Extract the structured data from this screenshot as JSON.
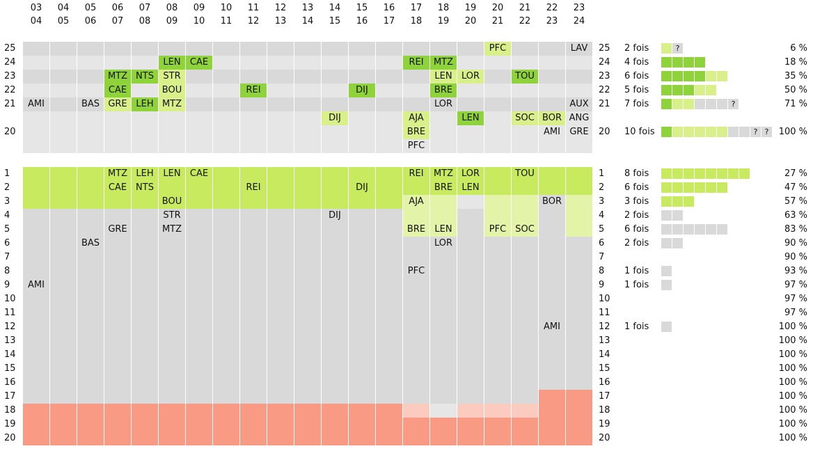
{
  "chart_data": {
    "type": "heatmap",
    "seasons": [
      "03-04",
      "04-05",
      "05-06",
      "06-07",
      "07-08",
      "08-09",
      "09-10",
      "10-11",
      "11-12",
      "12-13",
      "13-14",
      "14-15",
      "15-16",
      "16-17",
      "17-18",
      "18-19",
      "19-20",
      "20-21",
      "21-22",
      "22-23",
      "23-24"
    ],
    "season_top": [
      "03",
      "04",
      "05",
      "06",
      "07",
      "08",
      "09",
      "10",
      "11",
      "12",
      "13",
      "14",
      "15",
      "16",
      "17",
      "18",
      "19",
      "20",
      "21",
      "22",
      "23"
    ],
    "season_bottom": [
      "04",
      "05",
      "06",
      "07",
      "08",
      "09",
      "10",
      "11",
      "12",
      "13",
      "14",
      "15",
      "16",
      "17",
      "18",
      "19",
      "20",
      "21",
      "22",
      "23",
      "24"
    ],
    "top_panel": {
      "rows": [
        {
          "label": "25",
          "count": "2 fois",
          "pct": "6 %"
        },
        {
          "label": "24",
          "count": "4 fois",
          "pct": "18 %"
        },
        {
          "label": "23",
          "count": "6 fois",
          "pct": "35 %"
        },
        {
          "label": "22",
          "count": "5 fois",
          "pct": "50 %"
        },
        {
          "label": "21",
          "count": "7 fois",
          "pct": "71 %"
        },
        {
          "label": "20",
          "count": "10 fois",
          "pct": "100 %"
        }
      ],
      "teams": [
        {
          "team": "PFC",
          "season": 17,
          "row": 0,
          "sub": 0,
          "shade": "light"
        },
        {
          "team": "LAV",
          "season": 20,
          "row": 0,
          "sub": 0,
          "shade": "none"
        },
        {
          "team": "LEN",
          "season": 5,
          "row": 1,
          "sub": 0,
          "shade": "bright"
        },
        {
          "team": "CAE",
          "season": 6,
          "row": 1,
          "sub": 0,
          "shade": "bright"
        },
        {
          "team": "REI",
          "season": 14,
          "row": 1,
          "sub": 0,
          "shade": "bright"
        },
        {
          "team": "MTZ",
          "season": 15,
          "row": 1,
          "sub": 0,
          "shade": "bright"
        },
        {
          "team": "MTZ",
          "season": 3,
          "row": 2,
          "sub": 0,
          "shade": "bright"
        },
        {
          "team": "NTS",
          "season": 4,
          "row": 2,
          "sub": 0,
          "shade": "bright"
        },
        {
          "team": "STR",
          "season": 5,
          "row": 2,
          "sub": 0,
          "shade": "light"
        },
        {
          "team": "LEN",
          "season": 15,
          "row": 2,
          "sub": 0,
          "shade": "light"
        },
        {
          "team": "LOR",
          "season": 16,
          "row": 2,
          "sub": 0,
          "shade": "light"
        },
        {
          "team": "TOU",
          "season": 18,
          "row": 2,
          "sub": 0,
          "shade": "bright"
        },
        {
          "team": "CAE",
          "season": 3,
          "row": 3,
          "sub": 0,
          "shade": "bright"
        },
        {
          "team": "BOU",
          "season": 5,
          "row": 3,
          "sub": 0,
          "shade": "light"
        },
        {
          "team": "REI",
          "season": 8,
          "row": 3,
          "sub": 0,
          "shade": "bright"
        },
        {
          "team": "DIJ",
          "season": 12,
          "row": 3,
          "sub": 0,
          "shade": "bright"
        },
        {
          "team": "BRE",
          "season": 15,
          "row": 3,
          "sub": 0,
          "shade": "bright"
        },
        {
          "team": "AMI",
          "season": 0,
          "row": 4,
          "sub": 0,
          "shade": "none"
        },
        {
          "team": "BAS",
          "season": 2,
          "row": 4,
          "sub": 0,
          "shade": "none"
        },
        {
          "team": "GRE",
          "season": 3,
          "row": 4,
          "sub": 0,
          "shade": "light"
        },
        {
          "team": "LEH",
          "season": 4,
          "row": 4,
          "sub": 0,
          "shade": "bright"
        },
        {
          "team": "MTZ",
          "season": 5,
          "row": 4,
          "sub": 0,
          "shade": "light"
        },
        {
          "team": "LOR",
          "season": 15,
          "row": 4,
          "sub": 0,
          "shade": "none"
        },
        {
          "team": "AUX",
          "season": 20,
          "row": 4,
          "sub": 0,
          "shade": "none"
        },
        {
          "team": "DIJ",
          "season": 11,
          "row": 5,
          "sub": 0,
          "shade": "light"
        },
        {
          "team": "AJA",
          "season": 14,
          "row": 5,
          "sub": 0,
          "shade": "light"
        },
        {
          "team": "BRE",
          "season": 14,
          "row": 5,
          "sub": 1,
          "shade": "light"
        },
        {
          "team": "PFC",
          "season": 14,
          "row": 5,
          "sub": 2,
          "shade": "none"
        },
        {
          "team": "LEN",
          "season": 16,
          "row": 5,
          "sub": 0,
          "shade": "bright"
        },
        {
          "team": "SOC",
          "season": 18,
          "row": 5,
          "sub": 0,
          "shade": "light"
        },
        {
          "team": "BOR",
          "season": 19,
          "row": 5,
          "sub": 0,
          "shade": "light"
        },
        {
          "team": "AMI",
          "season": 19,
          "row": 5,
          "sub": 1,
          "shade": "none"
        },
        {
          "team": "ANG",
          "season": 20,
          "row": 5,
          "sub": 0,
          "shade": "none"
        },
        {
          "team": "GRE",
          "season": 20,
          "row": 5,
          "sub": 1,
          "shade": "none"
        }
      ],
      "bars": [
        {
          "row": 0,
          "squares": [
            "light",
            "q"
          ]
        },
        {
          "row": 1,
          "squares": [
            "bright",
            "bright",
            "bright",
            "bright"
          ]
        },
        {
          "row": 2,
          "squares": [
            "bright",
            "bright",
            "bright",
            "bright",
            "light",
            "light"
          ]
        },
        {
          "row": 3,
          "squares": [
            "bright",
            "bright",
            "bright",
            "light",
            "light"
          ]
        },
        {
          "row": 4,
          "squares": [
            "bright",
            "light",
            "light",
            "grey",
            "grey",
            "grey",
            "q"
          ]
        },
        {
          "row": 5,
          "squares": [
            "bright",
            "light",
            "light",
            "light",
            "light",
            "light",
            "grey",
            "grey",
            "q",
            "q"
          ]
        }
      ],
      "question_mark": "?"
    },
    "bottom_panel": {
      "rows": [
        {
          "label": "1",
          "count": "8 fois",
          "pct": "27 %"
        },
        {
          "label": "2",
          "count": "6 fois",
          "pct": "47 %"
        },
        {
          "label": "3",
          "count": "3 fois",
          "pct": "57 %"
        },
        {
          "label": "4",
          "count": "2 fois",
          "pct": "63 %"
        },
        {
          "label": "5",
          "count": "6 fois",
          "pct": "83 %"
        },
        {
          "label": "6",
          "count": "2 fois",
          "pct": "90 %"
        },
        {
          "label": "7",
          "count": "",
          "pct": "90 %"
        },
        {
          "label": "8",
          "count": "1 fois",
          "pct": "93 %"
        },
        {
          "label": "9",
          "count": "1 fois",
          "pct": "97 %"
        },
        {
          "label": "10",
          "count": "",
          "pct": "97 %"
        },
        {
          "label": "11",
          "count": "",
          "pct": "97 %"
        },
        {
          "label": "12",
          "count": "1 fois",
          "pct": "100 %"
        },
        {
          "label": "13",
          "count": "",
          "pct": "100 %"
        },
        {
          "label": "14",
          "count": "",
          "pct": "100 %"
        },
        {
          "label": "15",
          "count": "",
          "pct": "100 %"
        },
        {
          "label": "16",
          "count": "",
          "pct": "100 %"
        },
        {
          "label": "17",
          "count": "",
          "pct": "100 %"
        },
        {
          "label": "18",
          "count": "",
          "pct": "100 %"
        },
        {
          "label": "19",
          "count": "",
          "pct": "100 %"
        },
        {
          "label": "20",
          "count": "",
          "pct": "100 %"
        }
      ],
      "bars": [
        {
          "row": 0,
          "n": 8,
          "shade": "bright"
        },
        {
          "row": 1,
          "n": 6,
          "shade": "bright"
        },
        {
          "row": 2,
          "n": 3,
          "shade": "bright"
        },
        {
          "row": 3,
          "n": 2,
          "shade": "grey"
        },
        {
          "row": 4,
          "n": 6,
          "shade": "grey"
        },
        {
          "row": 5,
          "n": 2,
          "shade": "grey"
        },
        {
          "row": 7,
          "n": 1,
          "shade": "grey"
        },
        {
          "row": 8,
          "n": 1,
          "shade": "grey"
        },
        {
          "row": 11,
          "n": 1,
          "shade": "grey"
        }
      ],
      "zones": [
        {
          "season": 0,
          "green": 3,
          "lightgreen": 0,
          "red_from": 17
        },
        {
          "season": 1,
          "green": 3,
          "lightgreen": 0,
          "red_from": 17
        },
        {
          "season": 2,
          "green": 3,
          "lightgreen": 0,
          "red_from": 17
        },
        {
          "season": 3,
          "green": 3,
          "lightgreen": 0,
          "red_from": 17
        },
        {
          "season": 4,
          "green": 3,
          "lightgreen": 0,
          "red_from": 17
        },
        {
          "season": 5,
          "green": 3,
          "lightgreen": 0,
          "red_from": 17
        },
        {
          "season": 6,
          "green": 3,
          "lightgreen": 0,
          "red_from": 17
        },
        {
          "season": 7,
          "green": 3,
          "lightgreen": 0,
          "red_from": 17
        },
        {
          "season": 8,
          "green": 3,
          "lightgreen": 0,
          "red_from": 17
        },
        {
          "season": 9,
          "green": 3,
          "lightgreen": 0,
          "red_from": 17
        },
        {
          "season": 10,
          "green": 3,
          "lightgreen": 0,
          "red_from": 17
        },
        {
          "season": 11,
          "green": 3,
          "lightgreen": 0,
          "red_from": 17
        },
        {
          "season": 12,
          "green": 3,
          "lightgreen": 0,
          "red_from": 17
        },
        {
          "season": 13,
          "green": 3,
          "lightgreen": 0,
          "red_from": 17
        },
        {
          "season": 14,
          "green": 2,
          "lightgreen": 3,
          "red_from": 18,
          "palered": 1
        },
        {
          "season": 15,
          "green": 2,
          "lightgreen": 3,
          "red_from": 18,
          "greyish": 1
        },
        {
          "season": 16,
          "green": 2,
          "lightgreen": 0,
          "red_from": 18,
          "lightgreyzone": 1
        },
        {
          "season": 17,
          "green": 2,
          "lightgreen": 3,
          "red_from": 18,
          "palered": 1
        },
        {
          "season": 18,
          "green": 2,
          "lightgreen": 3,
          "red_from": 18,
          "palered": 1
        },
        {
          "season": 19,
          "green": 2,
          "lightgreen": 0,
          "red_from": 16
        },
        {
          "season": 20,
          "green": 2,
          "lightgreen": 3,
          "red_from": 16
        }
      ],
      "teams": [
        {
          "team": "MTZ",
          "season": 3,
          "rank": 1
        },
        {
          "team": "CAE",
          "season": 3,
          "rank": 2
        },
        {
          "team": "GRE",
          "season": 3,
          "rank": 5
        },
        {
          "team": "LEH",
          "season": 4,
          "rank": 1
        },
        {
          "team": "NTS",
          "season": 4,
          "rank": 2
        },
        {
          "team": "BAS",
          "season": 2,
          "rank": 6
        },
        {
          "team": "AMI",
          "season": 0,
          "rank": 9
        },
        {
          "team": "LEN",
          "season": 5,
          "rank": 1
        },
        {
          "team": "BOU",
          "season": 5,
          "rank": 3
        },
        {
          "team": "STR",
          "season": 5,
          "rank": 4
        },
        {
          "team": "MTZ",
          "season": 5,
          "rank": 5
        },
        {
          "team": "CAE",
          "season": 6,
          "rank": 1
        },
        {
          "team": "REI",
          "season": 8,
          "rank": 2
        },
        {
          "team": "DIJ",
          "season": 11,
          "rank": 4
        },
        {
          "team": "DIJ",
          "season": 12,
          "rank": 2
        },
        {
          "team": "REI",
          "season": 14,
          "rank": 1
        },
        {
          "team": "AJA",
          "season": 14,
          "rank": 3
        },
        {
          "team": "BRE",
          "season": 14,
          "rank": 5
        },
        {
          "team": "PFC",
          "season": 14,
          "rank": 8
        },
        {
          "team": "MTZ",
          "season": 15,
          "rank": 1
        },
        {
          "team": "BRE",
          "season": 15,
          "rank": 2
        },
        {
          "team": "LEN",
          "season": 15,
          "rank": 5
        },
        {
          "team": "LOR",
          "season": 15,
          "rank": 6
        },
        {
          "team": "LOR",
          "season": 16,
          "rank": 1
        },
        {
          "team": "LEN",
          "season": 16,
          "rank": 2
        },
        {
          "team": "PFC",
          "season": 17,
          "rank": 5
        },
        {
          "team": "TOU",
          "season": 18,
          "rank": 1
        },
        {
          "team": "SOC",
          "season": 18,
          "rank": 5
        },
        {
          "team": "BOR",
          "season": 19,
          "rank": 3
        },
        {
          "team": "AMI",
          "season": 19,
          "rank": 12
        }
      ]
    },
    "colors": {
      "grey": "#d9d9d9",
      "grey_alt": "#e6e6e6",
      "bright": "#8fd33b",
      "light": "#d9ef8a",
      "band": "#c8ea5e",
      "band_light": "#e3f3a8",
      "red": "#f89a84",
      "pale_red": "#fbcbbf",
      "white": "#ffffff"
    }
  }
}
